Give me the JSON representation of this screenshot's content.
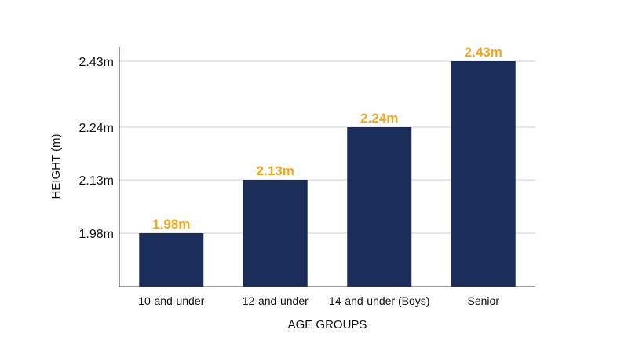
{
  "chart_data": {
    "type": "bar",
    "title": "",
    "xlabel": "AGE GROUPS",
    "ylabel": "HEIGHT (m)",
    "categories": [
      "10-and-under",
      "12-and-under",
      "14-and-under (Boys)",
      "Senior"
    ],
    "values": [
      1.98,
      2.13,
      2.24,
      2.43
    ],
    "data_labels": [
      "1.98m",
      "2.13m",
      "2.24m",
      "2.43m"
    ],
    "yticks": [
      1.98,
      2.13,
      2.24,
      2.43
    ],
    "ytick_labels": [
      "1.98m",
      "2.13m",
      "2.24m",
      "2.43m"
    ],
    "grid": true,
    "legend": "none"
  },
  "colors": {
    "bar": "#1b2e5a",
    "data_label": "#f0a623",
    "grid": "#d0d0d0",
    "axis": "#333333"
  }
}
